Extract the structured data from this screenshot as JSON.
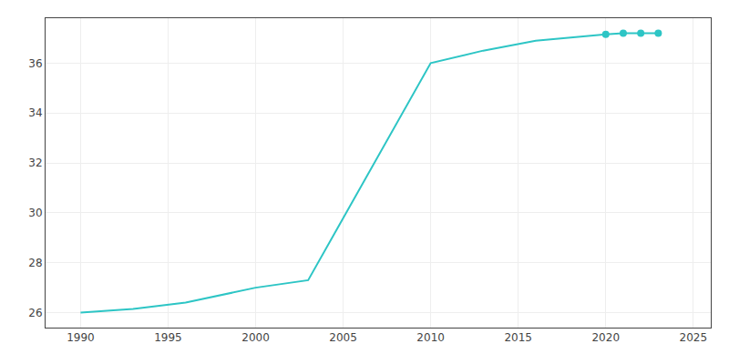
{
  "chart_data": {
    "type": "line",
    "x": [
      1990,
      1993,
      1996,
      2000,
      2003,
      2010,
      2013,
      2016,
      2020,
      2021,
      2022,
      2023
    ],
    "series": [
      {
        "values": [
          26,
          26.15,
          26.4,
          27,
          27.3,
          36,
          36.5,
          36.9,
          37.15,
          37.2,
          37.2,
          37.2
        ],
        "color": "#2dc5c5",
        "marker": "none",
        "line_style": "solid"
      },
      {
        "values": [
          null,
          null,
          null,
          null,
          null,
          null,
          null,
          null,
          37.15,
          37.2,
          37.2,
          37.2
        ],
        "color": "#2dc5c5",
        "marker": "circle",
        "line_style": "none"
      }
    ],
    "xlim": [
      1988,
      2026
    ],
    "xticks": [
      1990,
      1995,
      2000,
      2005,
      2010,
      2015,
      2020,
      2025
    ],
    "ylim": [
      25.4,
      37.8
    ],
    "yticks": [
      26,
      28,
      30,
      32,
      34,
      36
    ],
    "grid": true
  }
}
